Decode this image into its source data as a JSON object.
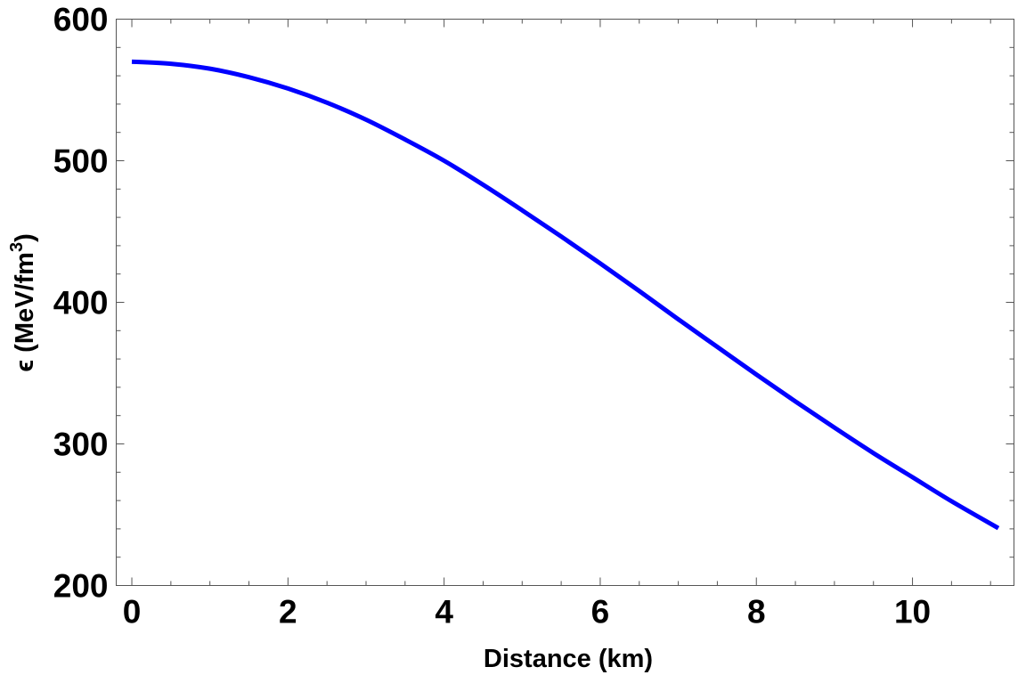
{
  "chart_data": {
    "type": "line",
    "title": "",
    "xlabel": "Distance (km)",
    "ylabel_parts": {
      "prefix": "ϵ (MeV/fm",
      "exponent": "3",
      "suffix": ")"
    },
    "xlim": [
      -0.2,
      11.3
    ],
    "ylim": [
      200,
      600
    ],
    "x_ticks": [
      0,
      2,
      4,
      6,
      8,
      10
    ],
    "x_tick_labels": [
      "0",
      "2",
      "4",
      "6",
      "8",
      "10"
    ],
    "x_minor_step": 0.5,
    "y_ticks": [
      200,
      300,
      400,
      500,
      600
    ],
    "y_tick_labels": [
      "200",
      "300",
      "400",
      "500",
      "600"
    ],
    "y_minor_step": 20,
    "grid": false,
    "series": [
      {
        "color": "#0000ff",
        "x": [
          0,
          0.5,
          1,
          1.5,
          2,
          2.5,
          3,
          3.5,
          4,
          4.5,
          5,
          5.5,
          6,
          6.5,
          7,
          7.5,
          8,
          8.5,
          9,
          9.5,
          10,
          10.5,
          11.1
        ],
        "y": [
          570,
          568.5,
          565,
          559,
          551,
          541,
          529,
          515,
          500,
          483,
          465,
          446.5,
          427.5,
          408,
          388,
          368.5,
          349,
          330,
          311.5,
          293.5,
          276.5,
          259.5,
          240.5
        ]
      }
    ]
  }
}
